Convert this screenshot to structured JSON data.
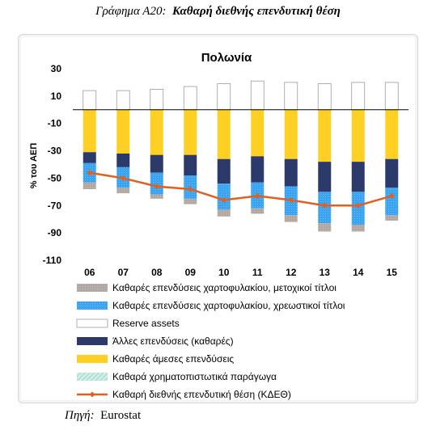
{
  "figure": {
    "prefix": "Γράφημα Α20:",
    "title": "Καθαρή διεθνής επενδυτική θέση",
    "source_label": "Πηγή:",
    "source_value": "Eurostat"
  },
  "colors": {
    "portfolio_equity": "#b2a8a3",
    "portfolio_debt": "#3aa3f2",
    "reserve_assets": "#ffffff",
    "other_investment": "#2c3a6b",
    "fdi": "#ffd024",
    "derivatives": "#9ad8c8",
    "niip_line": "#e0601f"
  },
  "chart_data": {
    "type": "bar",
    "stacked": true,
    "title": "Πολωνία",
    "ylabel": "% του ΑΕΠ",
    "xlabel": "",
    "ylim": [
      -110,
      30
    ],
    "yticks": [
      30,
      10,
      -10,
      -30,
      -50,
      -70,
      -90,
      -110
    ],
    "categories": [
      "06",
      "07",
      "08",
      "09",
      "10",
      "11",
      "12",
      "13",
      "14",
      "15"
    ],
    "series": [
      {
        "name": "Καθαρές επενδύσεις χαρτοφυλακίου, μετοχικοί τίτλοι",
        "key": "portfolio_equity",
        "kind": "bar",
        "values": [
          -5,
          -4,
          -3,
          -4,
          -5,
          -4,
          -5,
          -6,
          -5,
          -4
        ]
      },
      {
        "name": "Καθαρές επενδύσεις χαρτοφυλακίου, χρεωστικοί τίτλοι",
        "key": "portfolio_debt",
        "kind": "bar",
        "values": [
          -14,
          -15,
          -16,
          -17,
          -19,
          -19,
          -21,
          -23,
          -24,
          -20
        ]
      },
      {
        "name": "Reserve assets",
        "key": "reserve_assets",
        "kind": "bar",
        "values": [
          14,
          14,
          15,
          17,
          19,
          21,
          20,
          19,
          20,
          20
        ]
      },
      {
        "name": "Άλλες επενδύσεις (καθαρές)",
        "key": "other_investment",
        "kind": "bar",
        "values": [
          -8,
          -10,
          -13,
          -15,
          -18,
          -19,
          -20,
          -22,
          -22,
          -21
        ]
      },
      {
        "name": "Καθαρές άμεσες επενδύσεις",
        "key": "fdi",
        "kind": "bar",
        "values": [
          -31,
          -32,
          -33,
          -33,
          -36,
          -34,
          -36,
          -38,
          -38,
          -36
        ]
      },
      {
        "name": "Καθαρά χρηματοπιστωτικά παράγωγα",
        "key": "derivatives",
        "kind": "bar",
        "values": [
          0,
          0,
          0,
          0,
          0,
          0,
          0,
          0,
          0,
          0
        ]
      },
      {
        "name": "Καθαρή διεθνής επενδυτική θέση (ΚΔΕΘ)",
        "key": "niip_line",
        "kind": "line",
        "values": [
          -46,
          -50,
          -56,
          -58,
          -66,
          -63,
          -66,
          -70,
          -70,
          -63
        ]
      }
    ],
    "grid": false,
    "legend_position": "bottom"
  }
}
